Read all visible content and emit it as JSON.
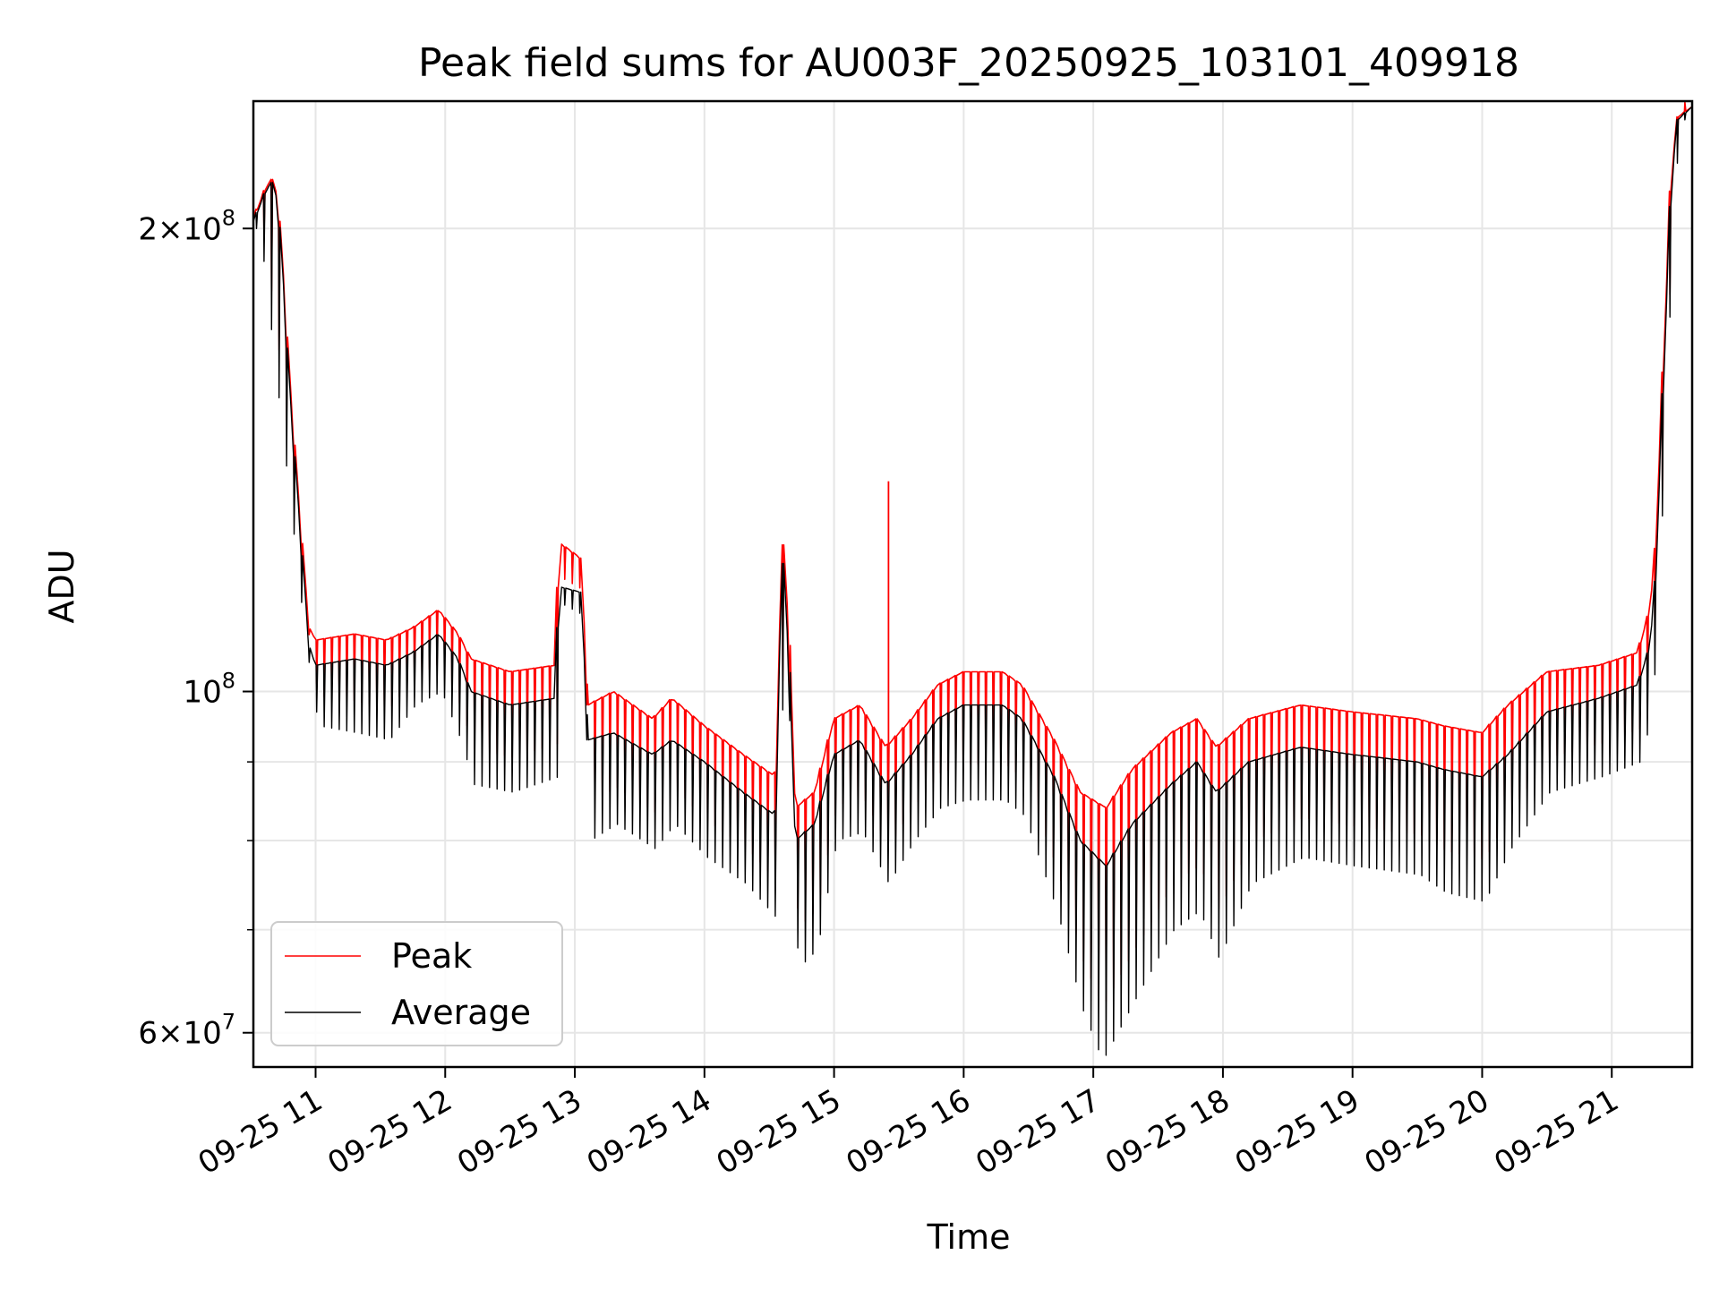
{
  "chart_data": {
    "type": "line",
    "title": "Peak field sums for AU003F_20250925_103101_409918",
    "xlabel": "Time",
    "ylabel": "ADU",
    "yscale": "log",
    "ylim": [
      57000000,
      242000000
    ],
    "xlim_hours": [
      10.52,
      21.62
    ],
    "grid": true,
    "legend_position": "lower-left",
    "x_ticks": [
      {
        "hour": 11,
        "label": "09-25 11"
      },
      {
        "hour": 12,
        "label": "09-25 12"
      },
      {
        "hour": 13,
        "label": "09-25 13"
      },
      {
        "hour": 14,
        "label": "09-25 14"
      },
      {
        "hour": 15,
        "label": "09-25 15"
      },
      {
        "hour": 16,
        "label": "09-25 16"
      },
      {
        "hour": 17,
        "label": "09-25 17"
      },
      {
        "hour": 18,
        "label": "09-25 18"
      },
      {
        "hour": 19,
        "label": "09-25 19"
      },
      {
        "hour": 20,
        "label": "09-25 20"
      },
      {
        "hour": 21,
        "label": "09-25 21"
      }
    ],
    "y_major_ticks": [
      {
        "value": 60000000,
        "mant": "6",
        "mul": "×",
        "base": "10",
        "exp": "7"
      },
      {
        "value": 100000000,
        "mant": "",
        "mul": "",
        "base": "10",
        "exp": "8"
      },
      {
        "value": 200000000,
        "mant": "2",
        "mul": "×",
        "base": "10",
        "exp": "8"
      }
    ],
    "y_minor_gridlines": [
      70000000,
      80000000,
      90000000
    ],
    "series": [
      {
        "name": "Peak",
        "color": "#ff0000",
        "baseline": [
          [
            10.52,
            203000000.0
          ],
          [
            10.62,
            213000000.0
          ],
          [
            10.68,
            216000000.0
          ],
          [
            10.73,
            200000000.0
          ],
          [
            10.8,
            160000000.0
          ],
          [
            10.88,
            130000000.0
          ],
          [
            10.95,
            110000000.0
          ],
          [
            11.0,
            108000000.0
          ],
          [
            11.3,
            109000000.0
          ],
          [
            11.55,
            108000000.0
          ],
          [
            11.75,
            110000000.0
          ],
          [
            11.95,
            113000000.0
          ],
          [
            12.1,
            109000000.0
          ],
          [
            12.2,
            105000000.0
          ],
          [
            12.5,
            103000000.0
          ],
          [
            12.85,
            104000000.0
          ],
          [
            12.88,
            125000000.0
          ],
          [
            13.05,
            122000000.0
          ],
          [
            13.1,
            98000000.0
          ],
          [
            13.3,
            100000000.0
          ],
          [
            13.6,
            96000000.0
          ],
          [
            13.75,
            99000000.0
          ],
          [
            14.0,
            95000000.0
          ],
          [
            14.3,
            91000000.0
          ],
          [
            14.55,
            88000000.0
          ],
          [
            14.6,
            128000000.0
          ],
          [
            14.65,
            110000000.0
          ],
          [
            14.7,
            84000000.0
          ],
          [
            14.85,
            86000000.0
          ],
          [
            15.0,
            96000000.0
          ],
          [
            15.2,
            98000000.0
          ],
          [
            15.4,
            92000000.0
          ],
          [
            15.6,
            96000000.0
          ],
          [
            15.8,
            101000000.0
          ],
          [
            16.0,
            103000000.0
          ],
          [
            16.3,
            103000000.0
          ],
          [
            16.45,
            101000000.0
          ],
          [
            16.7,
            93000000.0
          ],
          [
            16.9,
            86000000.0
          ],
          [
            17.1,
            84000000.0
          ],
          [
            17.3,
            89000000.0
          ],
          [
            17.6,
            94000000.0
          ],
          [
            17.8,
            96000000.0
          ],
          [
            17.95,
            92000000.0
          ],
          [
            18.2,
            96000000.0
          ],
          [
            18.6,
            98000000.0
          ],
          [
            19.0,
            97000000.0
          ],
          [
            19.5,
            96000000.0
          ],
          [
            19.7,
            95000000.0
          ],
          [
            20.0,
            94000000.0
          ],
          [
            20.2,
            98000000.0
          ],
          [
            20.5,
            103000000.0
          ],
          [
            20.9,
            104000000.0
          ],
          [
            21.2,
            106000000.0
          ],
          [
            21.28,
            112000000.0
          ],
          [
            21.33,
            120000000.0
          ],
          [
            21.4,
            165000000.0
          ],
          [
            21.45,
            210000000.0
          ],
          [
            21.5,
            236000000.0
          ],
          [
            21.62,
            240000000.0
          ]
        ],
        "spikes": [
          [
            15.42,
            137000000.0
          ]
        ]
      },
      {
        "name": "Average",
        "color": "#000000",
        "baseline": [
          [
            10.52,
            202000000.0
          ],
          [
            10.62,
            212000000.0
          ],
          [
            10.68,
            215000000.0
          ],
          [
            10.73,
            198000000.0
          ],
          [
            10.8,
            157000000.0
          ],
          [
            10.88,
            128000000.0
          ],
          [
            10.95,
            107000000.0
          ],
          [
            11.0,
            104000000.0
          ],
          [
            11.3,
            105000000.0
          ],
          [
            11.55,
            104000000.0
          ],
          [
            11.75,
            106000000.0
          ],
          [
            11.95,
            109000000.0
          ],
          [
            12.1,
            105000000.0
          ],
          [
            12.2,
            100000000.0
          ],
          [
            12.5,
            98000000.0
          ],
          [
            12.85,
            99000000.0
          ],
          [
            12.88,
            117000000.0
          ],
          [
            13.05,
            116000000.0
          ],
          [
            13.1,
            93000000.0
          ],
          [
            13.3,
            94000000.0
          ],
          [
            13.6,
            91000000.0
          ],
          [
            13.75,
            93000000.0
          ],
          [
            14.0,
            90000000.0
          ],
          [
            14.3,
            86000000.0
          ],
          [
            14.55,
            83000000.0
          ],
          [
            14.6,
            125000000.0
          ],
          [
            14.65,
            105000000.0
          ],
          [
            14.7,
            80000000.0
          ],
          [
            14.85,
            82000000.0
          ],
          [
            15.0,
            91000000.0
          ],
          [
            15.2,
            93000000.0
          ],
          [
            15.4,
            87000000.0
          ],
          [
            15.6,
            91000000.0
          ],
          [
            15.8,
            96000000.0
          ],
          [
            16.0,
            98000000.0
          ],
          [
            16.3,
            98000000.0
          ],
          [
            16.45,
            96000000.0
          ],
          [
            16.7,
            88000000.0
          ],
          [
            16.9,
            80000000.0
          ],
          [
            17.1,
            77000000.0
          ],
          [
            17.3,
            82000000.0
          ],
          [
            17.6,
            87000000.0
          ],
          [
            17.8,
            90000000.0
          ],
          [
            17.95,
            86000000.0
          ],
          [
            18.2,
            90000000.0
          ],
          [
            18.6,
            92000000.0
          ],
          [
            19.0,
            91000000.0
          ],
          [
            19.5,
            90000000.0
          ],
          [
            19.7,
            89000000.0
          ],
          [
            20.0,
            88000000.0
          ],
          [
            20.2,
            91000000.0
          ],
          [
            20.5,
            97000000.0
          ],
          [
            20.9,
            99000000.0
          ],
          [
            21.2,
            101000000.0
          ],
          [
            21.28,
            106000000.0
          ],
          [
            21.33,
            114000000.0
          ],
          [
            21.4,
            160000000.0
          ],
          [
            21.45,
            205000000.0
          ],
          [
            21.5,
            235000000.0
          ],
          [
            21.62,
            240000000.0
          ]
        ],
        "troughs": [
          [
            10.55,
            200000000.0
          ],
          [
            10.9,
            108000000.0
          ],
          [
            11.0,
            95000000.0
          ],
          [
            11.3,
            94000000.0
          ],
          [
            11.55,
            93000000.0
          ],
          [
            11.75,
            98000000.0
          ],
          [
            11.95,
            100000000.0
          ],
          [
            12.1,
            93000000.0
          ],
          [
            12.2,
            87000000.0
          ],
          [
            12.5,
            86000000.0
          ],
          [
            12.85,
            88000000.0
          ],
          [
            12.88,
            114000000.0
          ],
          [
            13.05,
            112000000.0
          ],
          [
            13.1,
            80000000.0
          ],
          [
            13.3,
            82000000.0
          ],
          [
            13.6,
            79000000.0
          ],
          [
            13.75,
            82000000.0
          ],
          [
            14.0,
            78000000.0
          ],
          [
            14.3,
            75000000.0
          ],
          [
            14.55,
            71000000.0
          ],
          [
            14.6,
            120000000.0
          ],
          [
            14.65,
            98000000.0
          ],
          [
            14.7,
            66000000.0
          ],
          [
            14.85,
            68000000.0
          ],
          [
            15.0,
            80000000.0
          ],
          [
            15.2,
            81000000.0
          ],
          [
            15.4,
            75000000.0
          ],
          [
            15.6,
            80000000.0
          ],
          [
            15.8,
            84000000.0
          ],
          [
            16.0,
            85000000.0
          ],
          [
            16.3,
            85000000.0
          ],
          [
            16.45,
            83000000.0
          ],
          [
            16.7,
            72000000.0
          ],
          [
            16.9,
            62000000.0
          ],
          [
            17.05,
            57500000.0
          ],
          [
            17.3,
            63000000.0
          ],
          [
            17.6,
            70000000.0
          ],
          [
            17.8,
            72000000.0
          ],
          [
            17.95,
            67000000.0
          ],
          [
            18.2,
            75000000.0
          ],
          [
            18.6,
            78000000.0
          ],
          [
            19.0,
            77000000.0
          ],
          [
            19.5,
            76000000.0
          ],
          [
            19.7,
            74000000.0
          ],
          [
            20.0,
            73000000.0
          ],
          [
            20.2,
            79000000.0
          ],
          [
            20.5,
            86000000.0
          ],
          [
            20.9,
            88000000.0
          ],
          [
            21.2,
            90000000.0
          ],
          [
            21.28,
            96000000.0
          ],
          [
            21.33,
            108000000.0
          ],
          [
            21.4,
            155000000.0
          ],
          [
            21.45,
            200000000.0
          ],
          [
            21.5,
            233000000.0
          ],
          [
            21.62,
            240000000.0
          ]
        ]
      }
    ]
  }
}
